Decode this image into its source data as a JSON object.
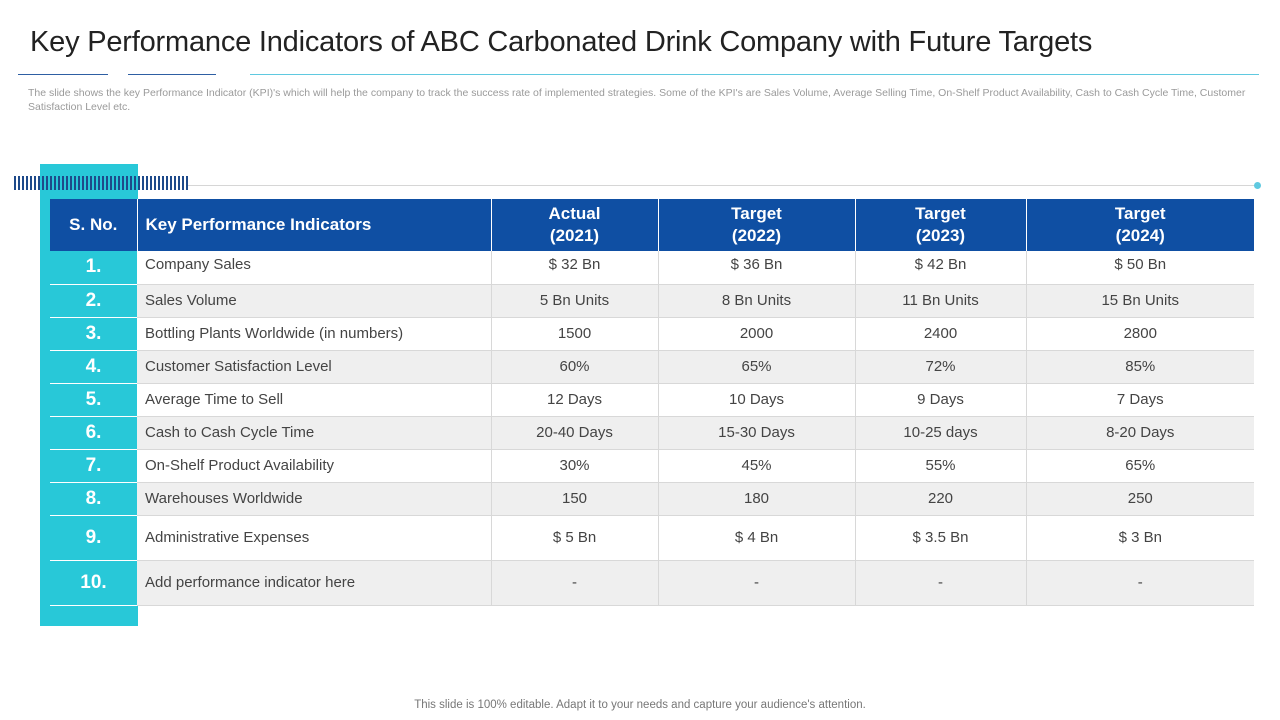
{
  "title": "Key Performance Indicators of ABC Carbonated Drink Company with Future Targets",
  "description": "The slide shows the key Performance Indicator (KPI)'s which will help the company to track the success rate of implemented strategies. Some of the KPI's are Sales Volume, Average Selling Time, On-Shelf Product Availability, Cash to Cash Cycle Time, Customer Satisfaction Level etc.",
  "table": {
    "headers": {
      "sno": "S. No.",
      "kpi": "Key Performance Indicators",
      "c1_line1": "Actual",
      "c1_line2": "(2021)",
      "c2_line1": "Target",
      "c2_line2": "(2022)",
      "c3_line1": "Target",
      "c3_line2": "(2023)",
      "c4_line1": "Target",
      "c4_line2": "(2024)"
    },
    "rows": [
      {
        "sno": "1.",
        "kpi": "Company Sales",
        "v1": "$ 32 Bn",
        "v2": "$ 36 Bn",
        "v3": "$ 42 Bn",
        "v4": "$ 50 Bn"
      },
      {
        "sno": "2.",
        "kpi": "Sales Volume",
        "v1": "5 Bn Units",
        "v2": "8 Bn Units",
        "v3": "11 Bn Units",
        "v4": "15 Bn Units"
      },
      {
        "sno": "3.",
        "kpi": "Bottling Plants Worldwide (in numbers)",
        "v1": "1500",
        "v2": "2000",
        "v3": "2400",
        "v4": "2800"
      },
      {
        "sno": "4.",
        "kpi": "Customer Satisfaction Level",
        "v1": "60%",
        "v2": "65%",
        "v3": "72%",
        "v4": "85%"
      },
      {
        "sno": "5.",
        "kpi": "Average Time to Sell",
        "v1": "12 Days",
        "v2": "10 Days",
        "v3": "9 Days",
        "v4": "7 Days"
      },
      {
        "sno": "6.",
        "kpi": "Cash to Cash Cycle Time",
        "v1": "20-40 Days",
        "v2": "15-30 Days",
        "v3": "10-25 days",
        "v4": "8-20 Days"
      },
      {
        "sno": "7.",
        "kpi": "On-Shelf  Product Availability",
        "v1": "30%",
        "v2": "45%",
        "v3": "55%",
        "v4": "65%"
      },
      {
        "sno": "8.",
        "kpi": "Warehouses Worldwide",
        "v1": "150",
        "v2": "180",
        "v3": "220",
        "v4": "250"
      },
      {
        "sno": "9.",
        "kpi": "Administrative Expenses",
        "v1": "$ 5 Bn",
        "v2": "$ 4 Bn",
        "v3": "$ 3.5 Bn",
        "v4": "$ 3 Bn"
      },
      {
        "sno": "10.",
        "kpi": "Add performance indicator here",
        "v1": "-",
        "v2": "-",
        "v3": "-",
        "v4": "-"
      }
    ]
  },
  "footer": "This slide is 100% editable. Adapt it to your needs and capture your audience's attention."
}
